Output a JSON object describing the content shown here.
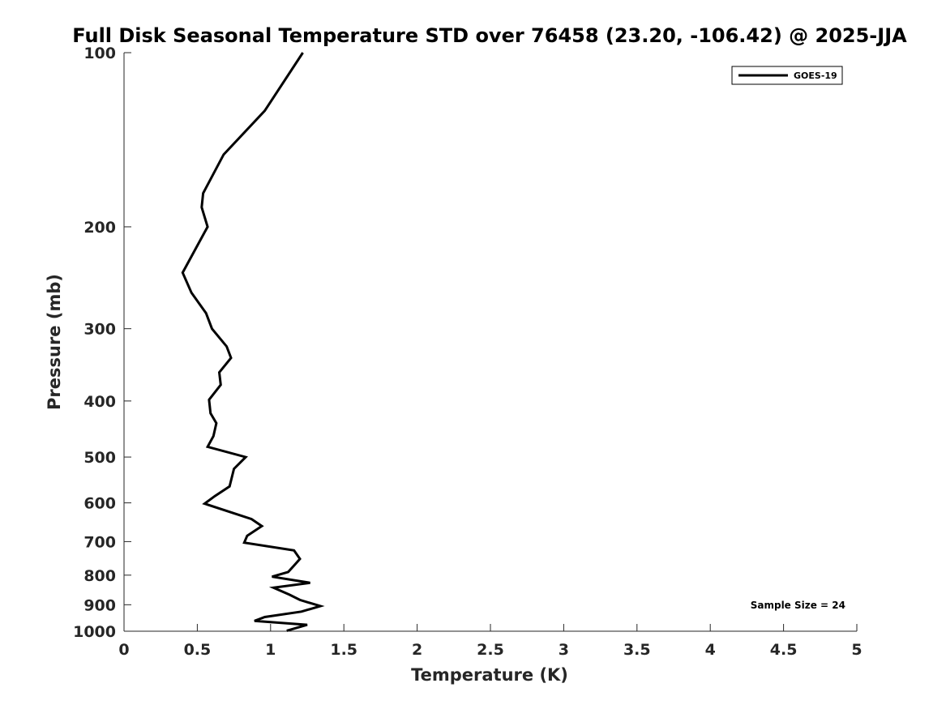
{
  "chart_data": {
    "type": "line",
    "title": "Full Disk Seasonal Temperature STD over 76458 (23.20, -106.42) @ 2025-JJA",
    "xlabel": "Temperature (K)",
    "ylabel": "Pressure (mb)",
    "xlim": [
      0,
      5
    ],
    "ylim": [
      1000,
      100
    ],
    "yscale": "log",
    "x_ticks": [
      0,
      0.5,
      1,
      1.5,
      2,
      2.5,
      3,
      3.5,
      4,
      4.5,
      5
    ],
    "x_tick_labels": [
      "0",
      "0.5",
      "1",
      "1.5",
      "2",
      "2.5",
      "3",
      "3.5",
      "4",
      "4.5",
      "5"
    ],
    "y_ticks": [
      100,
      200,
      300,
      400,
      500,
      600,
      700,
      800,
      900,
      1000
    ],
    "y_tick_labels": [
      "100",
      "200",
      "300",
      "400",
      "500",
      "600",
      "700",
      "800",
      "900",
      "1000"
    ],
    "grid": false,
    "legend_position": "top-right",
    "series": [
      {
        "name": "GOES-19",
        "color": "#000000",
        "points": [
          [
            1.22,
            100
          ],
          [
            0.96,
            126
          ],
          [
            0.68,
            150
          ],
          [
            0.54,
            175
          ],
          [
            0.53,
            185
          ],
          [
            0.57,
            200
          ],
          [
            0.4,
            240
          ],
          [
            0.46,
            260
          ],
          [
            0.56,
            282
          ],
          [
            0.6,
            300
          ],
          [
            0.7,
            322
          ],
          [
            0.73,
            337
          ],
          [
            0.65,
            357
          ],
          [
            0.66,
            375
          ],
          [
            0.58,
            398
          ],
          [
            0.59,
            420
          ],
          [
            0.63,
            437
          ],
          [
            0.61,
            460
          ],
          [
            0.57,
            480
          ],
          [
            0.83,
            500
          ],
          [
            0.75,
            524
          ],
          [
            0.72,
            562
          ],
          [
            0.62,
            584
          ],
          [
            0.55,
            602
          ],
          [
            0.87,
            640
          ],
          [
            0.94,
            658
          ],
          [
            0.84,
            684
          ],
          [
            0.82,
            703
          ],
          [
            1.16,
            725
          ],
          [
            1.2,
            750
          ],
          [
            1.16,
            770
          ],
          [
            1.12,
            790
          ],
          [
            1.01,
            805
          ],
          [
            1.27,
            825
          ],
          [
            1.02,
            841
          ],
          [
            1.13,
            865
          ],
          [
            1.2,
            883
          ],
          [
            1.34,
            905
          ],
          [
            1.21,
            925
          ],
          [
            0.96,
            945
          ],
          [
            0.89,
            960
          ],
          [
            1.25,
            975
          ],
          [
            1.11,
            998
          ]
        ]
      }
    ],
    "annotations": [
      {
        "text": "Sample Size = 24",
        "position": "bottom-right"
      }
    ]
  }
}
